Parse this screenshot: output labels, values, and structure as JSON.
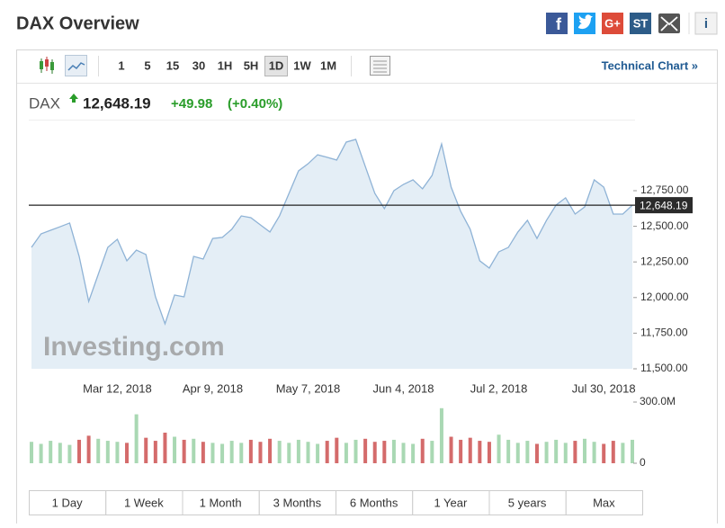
{
  "header": {
    "title": "DAX Overview",
    "share": [
      "f",
      "G+",
      "ST",
      "i"
    ]
  },
  "toolbar": {
    "intervals": [
      "1",
      "5",
      "15",
      "30",
      "1H",
      "5H",
      "1D",
      "1W",
      "1M"
    ],
    "active_interval": 6,
    "link": "Technical Chart »"
  },
  "quote": {
    "symbol": "DAX",
    "price": "12,648.19",
    "change": "+49.98",
    "change_percent": "(+0.40%)"
  },
  "chart_data": {
    "type": "line",
    "categories": [
      null,
      null,
      null,
      null,
      null,
      null,
      null,
      null,
      null,
      "Mar 12, 2018",
      null,
      null,
      null,
      null,
      null,
      null,
      null,
      null,
      null,
      "Apr 9, 2018",
      null,
      null,
      null,
      null,
      null,
      null,
      null,
      null,
      null,
      "May 7, 2018",
      null,
      null,
      null,
      null,
      null,
      null,
      null,
      null,
      null,
      "Jun 4, 2018",
      null,
      null,
      null,
      null,
      null,
      null,
      null,
      null,
      null,
      "Jul 2, 2018",
      null,
      null,
      null,
      null,
      null,
      null,
      null,
      null,
      null,
      null,
      "Jul 30, 2018",
      null,
      null,
      null
    ],
    "series": [
      {
        "name": "DAX",
        "color": "#8fb3d6",
        "values": [
          12352,
          12447,
          12472,
          12497,
          12523,
          12289,
          11973,
          12163,
          12352,
          12409,
          12258,
          12333,
          12302,
          12005,
          11816,
          12018,
          12005,
          12289,
          12270,
          12415,
          12422,
          12479,
          12573,
          12561,
          12510,
          12460,
          12573,
          12731,
          12889,
          12939,
          13002,
          12984,
          12965,
          13091,
          13110,
          12920,
          12731,
          12624,
          12750,
          12794,
          12826,
          12763,
          12857,
          13078,
          12775,
          12605,
          12479,
          12258,
          12207,
          12321,
          12352,
          12460,
          12542,
          12415,
          12542,
          12649,
          12700,
          12586,
          12636,
          12826,
          12775,
          12586,
          12586,
          12648
        ]
      }
    ],
    "area_color": "#e4eef6",
    "last_value": {
      "value": 12648.19,
      "label": "12,648.19"
    },
    "ylim": [
      11500,
      13236
    ],
    "yticks": [
      {
        "value": 11500,
        "label": "11,500.00"
      },
      {
        "value": 11750,
        "label": "11,750.00"
      },
      {
        "value": 12000,
        "label": "12,000.00"
      },
      {
        "value": 12250,
        "label": "12,250.00"
      },
      {
        "value": 12500,
        "label": "12,500.00"
      },
      {
        "value": 12750,
        "label": "12,750.00"
      }
    ],
    "watermark": "Investing.com",
    "volume": {
      "values": [
        105,
        95,
        110,
        100,
        90,
        115,
        135,
        120,
        110,
        105,
        100,
        240,
        125,
        110,
        150,
        130,
        115,
        120,
        105,
        100,
        95,
        110,
        100,
        115,
        105,
        120,
        110,
        100,
        115,
        105,
        95,
        110,
        125,
        100,
        115,
        120,
        105,
        110,
        115,
        100,
        95,
        120,
        110,
        270,
        130,
        115,
        125,
        110,
        105,
        140,
        115,
        100,
        110,
        95,
        105,
        115,
        100,
        110,
        120,
        105,
        95,
        110,
        100,
        115
      ],
      "up_color": "#a9d8b3",
      "down_color": "#d46b6b",
      "vlim": [
        0,
        300
      ],
      "vticks": [
        0,
        {
          "value": 300,
          "label": "300.0M"
        }
      ]
    }
  },
  "ranges": [
    "1 Day",
    "1 Week",
    "1 Month",
    "3 Months",
    "6 Months",
    "1 Year",
    "5 years",
    "Max"
  ]
}
